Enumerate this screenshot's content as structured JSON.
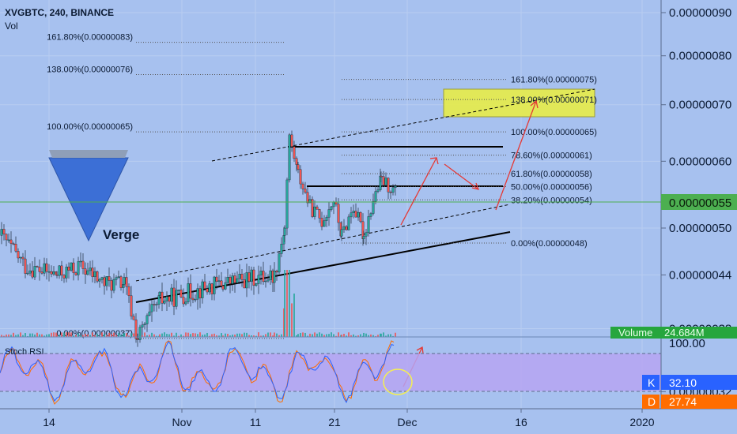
{
  "header": {
    "symbol": "XVGBTC, 240, BINANCE",
    "volume_label": "Vol"
  },
  "chart_data": [
    {
      "type": "candlestick",
      "title": "XVGBTC, 240, BINANCE",
      "watermark_label": "Verge",
      "price_axis": {
        "ticks": [
          "0.00000090",
          "0.00000080",
          "0.00000070",
          "0.00000060",
          "0.00000050",
          "0.00000044",
          "0.00000038",
          "0.00000032"
        ],
        "values": [
          90,
          80,
          70,
          60,
          50,
          44,
          38,
          32
        ],
        "scale": "log",
        "current_price_label": "0.00000055",
        "current_price_value": 55
      },
      "time_axis": {
        "ticks": [
          "14",
          "Nov",
          "11",
          "21",
          "Dec",
          "16",
          "2020"
        ]
      },
      "price_segments": [
        {
          "from": [
            0,
            49
          ],
          "to": [
            30,
            45
          ]
        },
        {
          "from": [
            30,
            45
          ],
          "to": [
            70,
            44
          ]
        },
        {
          "from": [
            70,
            44
          ],
          "to": [
            100,
            45
          ]
        },
        {
          "from": [
            100,
            45
          ],
          "to": [
            130,
            43
          ]
        },
        {
          "from": [
            130,
            43
          ],
          "to": [
            155,
            43
          ]
        },
        {
          "from": [
            155,
            43
          ],
          "to": [
            172,
            37
          ]
        },
        {
          "from": [
            172,
            37
          ],
          "to": [
            200,
            41
          ]
        },
        {
          "from": [
            200,
            41
          ],
          "to": [
            280,
            43
          ]
        },
        {
          "from": [
            280,
            43
          ],
          "to": [
            345,
            44
          ]
        },
        {
          "from": [
            345,
            44
          ],
          "to": [
            358,
            50
          ]
        },
        {
          "from": [
            358,
            50
          ],
          "to": [
            364,
            64
          ]
        },
        {
          "from": [
            364,
            64
          ],
          "to": [
            375,
            58
          ]
        },
        {
          "from": [
            375,
            58
          ],
          "to": [
            390,
            53
          ]
        },
        {
          "from": [
            390,
            53
          ],
          "to": [
            405,
            51
          ]
        },
        {
          "from": [
            405,
            51
          ],
          "to": [
            420,
            54
          ]
        },
        {
          "from": [
            420,
            54
          ],
          "to": [
            430,
            49
          ]
        },
        {
          "from": [
            430,
            49
          ],
          "to": [
            445,
            53
          ]
        },
        {
          "from": [
            445,
            53
          ],
          "to": [
            458,
            49
          ]
        },
        {
          "from": [
            458,
            49
          ],
          "to": [
            470,
            54
          ]
        },
        {
          "from": [
            470,
            54
          ],
          "to": [
            480,
            57
          ]
        },
        {
          "from": [
            480,
            57
          ],
          "to": [
            500,
            55
          ]
        }
      ],
      "fibonacci_left": [
        {
          "label": "161.80%(0.00000083)",
          "price": 83
        },
        {
          "label": "138.00%(0.00000076)",
          "price": 76
        },
        {
          "label": "100.00%(0.00000065)",
          "price": 65
        },
        {
          "label": "0.00%(0.00000037)",
          "price": 37
        }
      ],
      "fibonacci_right": [
        {
          "label": "161.80%(0.00000075)",
          "price": 75
        },
        {
          "label": "138.00%(0.00000071)",
          "price": 71
        },
        {
          "label": "100.00%(0.00000065)",
          "price": 65
        },
        {
          "label": "78.60%(0.00000061)",
          "price": 61
        },
        {
          "label": "61.80%(0.00000058)",
          "price": 58
        },
        {
          "label": "50.00%(0.00000056)",
          "price": 56
        },
        {
          "label": "38.20%(0.00000054)",
          "price": 54
        },
        {
          "label": "0.00%(0.00000048)",
          "price": 48
        }
      ],
      "volume_label": "Volume",
      "volume_value": "24.684M"
    },
    {
      "type": "line",
      "title": "Stoch RSI",
      "axis_top_label": "100.00",
      "band": [
        20,
        80
      ],
      "series": [
        {
          "name": "K",
          "value": "32.10",
          "color": "#2962ff"
        },
        {
          "name": "D",
          "value": "27.74",
          "color": "#ff6d00"
        }
      ]
    }
  ],
  "colors": {
    "background": "#a7c1ef",
    "up_candle": "#26a69a",
    "down_candle": "#ef5350",
    "fib_zone": "#e6ec4c",
    "price_label_bg": "#4caf50",
    "volume_bg": "#26a63d",
    "k_bg": "#2962ff",
    "d_bg": "#ff6d00",
    "arrow": "#e53935"
  }
}
